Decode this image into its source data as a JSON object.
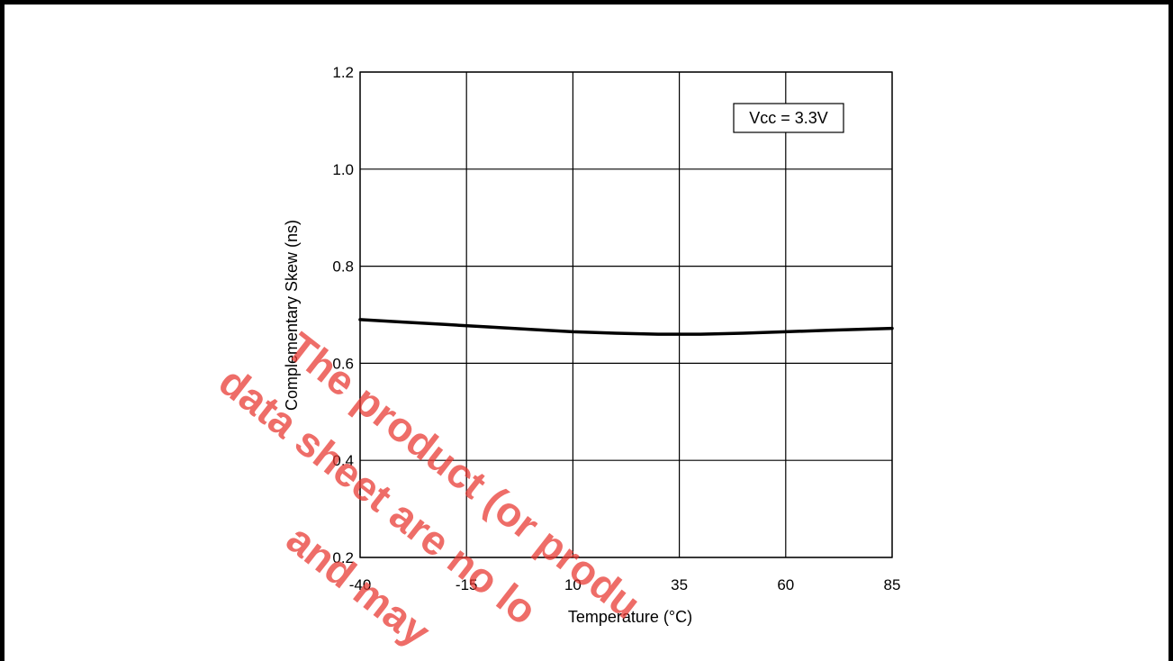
{
  "chart_data": {
    "type": "line",
    "title": "",
    "xlabel": "Temperature (°C)",
    "ylabel": "Complementary Skew (ns)",
    "x": [
      -40,
      -15,
      10,
      35,
      60,
      85
    ],
    "x_ticks": [
      "-40",
      "-15",
      "10",
      "35",
      "60",
      "85"
    ],
    "y_ticks": [
      "0.2",
      "0.4",
      "0.6",
      "0.8",
      "1.0",
      "1.2"
    ],
    "xlim": [
      -40,
      85
    ],
    "ylim": [
      0.2,
      1.2
    ],
    "grid": true,
    "annotation": "Vcc = 3.3V",
    "series": [
      {
        "x": [
          -40,
          -30,
          -20,
          -10,
          0,
          10,
          20,
          30,
          40,
          50,
          60,
          70,
          85
        ],
        "values": [
          0.69,
          0.685,
          0.68,
          0.675,
          0.67,
          0.665,
          0.662,
          0.66,
          0.66,
          0.662,
          0.665,
          0.668,
          0.672
        ]
      }
    ]
  },
  "watermark": {
    "lines": [
      "The product (or produ",
      "data sheet are no lo",
      "and may"
    ],
    "color": "#e8362f"
  }
}
